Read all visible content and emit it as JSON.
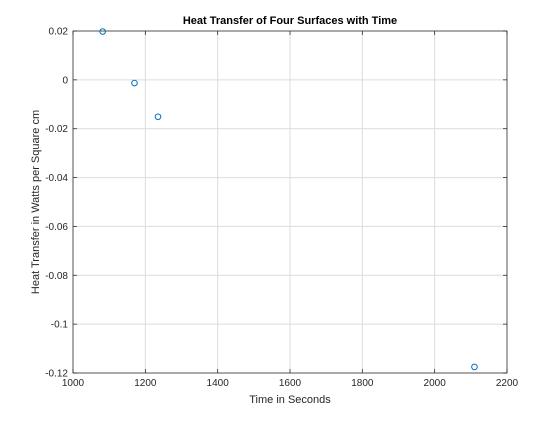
{
  "chart_data": {
    "type": "scatter",
    "title": "Heat Transfer of Four Surfaces with Time",
    "xlabel": "Time in Seconds",
    "ylabel": "Heat Transfer in Watts per Square cm",
    "xlim": [
      1000,
      2200
    ],
    "ylim": [
      -0.12,
      0.02
    ],
    "xticks": [
      1000,
      1200,
      1400,
      1600,
      1800,
      2000,
      2200
    ],
    "xtick_labels": [
      "1000",
      "1200",
      "1400",
      "1600",
      "1800",
      "2000",
      "2200"
    ],
    "yticks": [
      0.02,
      0,
      -0.02,
      -0.04,
      -0.06,
      -0.08,
      -0.1,
      -0.12
    ],
    "ytick_labels": [
      "0.02",
      "0",
      "-0.02",
      "-0.04",
      "-0.06",
      "-0.08",
      "-0.1",
      "-0.12"
    ],
    "grid": true,
    "marker": "circle-open",
    "series": [
      {
        "color": "#0072BD",
        "points": [
          {
            "x": 1082,
            "y": 0.0198
          },
          {
            "x": 1170,
            "y": -0.0013
          },
          {
            "x": 1235,
            "y": -0.0151
          },
          {
            "x": 2110,
            "y": -0.1175
          }
        ]
      }
    ]
  }
}
